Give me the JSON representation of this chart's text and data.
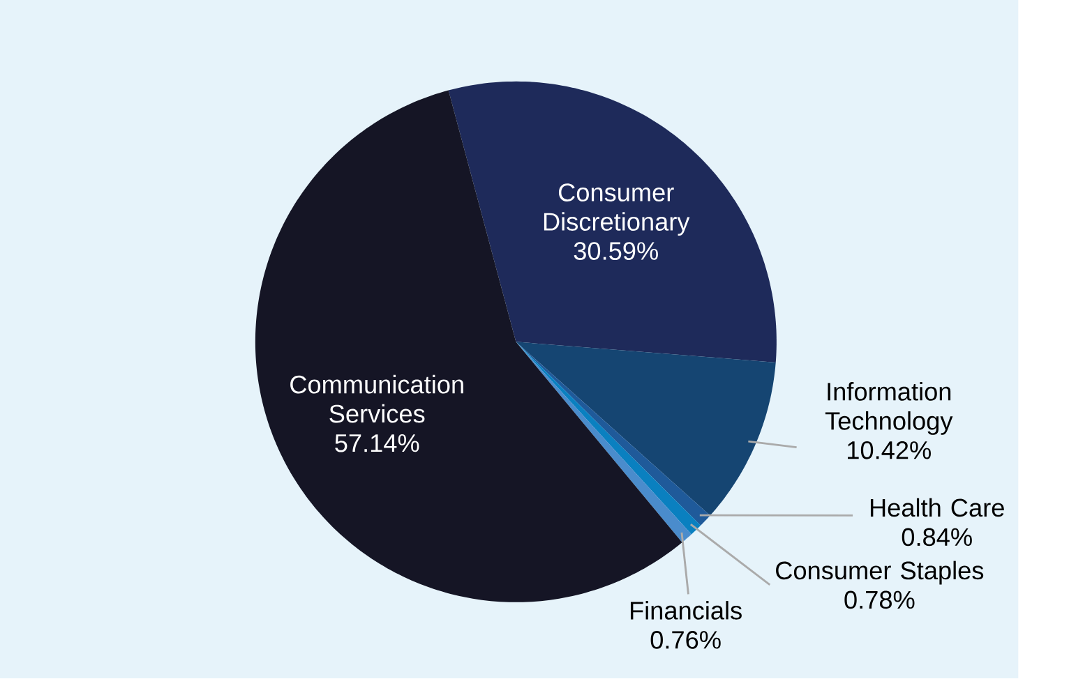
{
  "chart_data": {
    "type": "pie",
    "categories": [
      "Consumer Discretionary",
      "Information Technology",
      "Health Care",
      "Consumer Staples",
      "Financials",
      "Communication Services"
    ],
    "values": [
      30.59,
      10.42,
      0.84,
      0.78,
      0.76,
      57.14
    ],
    "colors": [
      "#1e2a5a",
      "#154572",
      "#1f5a9a",
      "#0a80c0",
      "#4a8ccc",
      "#151525"
    ],
    "value_labels": [
      "30.59%",
      "10.42%",
      "0.84%",
      "0.78%",
      "0.76%",
      "57.14%"
    ]
  }
}
